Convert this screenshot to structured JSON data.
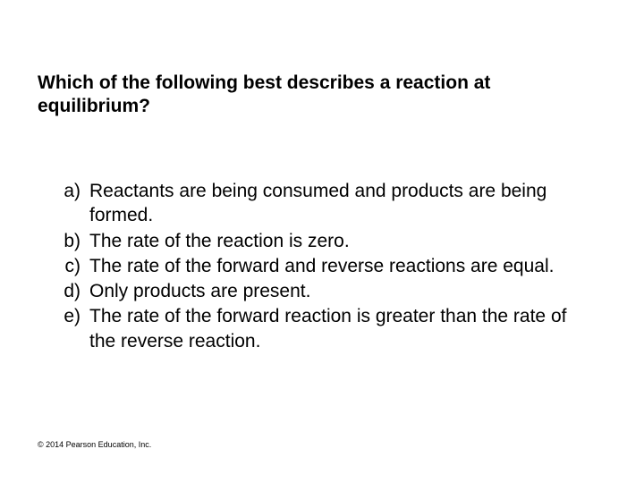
{
  "question": "Which of the following best describes a reaction at equilibrium?",
  "options": [
    {
      "marker": "a)",
      "text": "Reactants are being consumed and products are being formed."
    },
    {
      "marker": "b)",
      "text": "The rate of the reaction is zero."
    },
    {
      "marker": "c)",
      "text": "The rate of the forward and reverse reactions are equal."
    },
    {
      "marker": "d)",
      "text": "Only products are present."
    },
    {
      "marker": "e)",
      "text": "The rate of the forward reaction is greater than the rate of the reverse reaction."
    }
  ],
  "copyright": "© 2014 Pearson Education, Inc.",
  "style": {
    "background_color": "#ffffff",
    "text_color": "#000000",
    "question_fontsize": 21,
    "question_fontweight": "bold",
    "option_fontsize": 21,
    "copyright_fontsize": 9,
    "font_family": "Arial"
  }
}
